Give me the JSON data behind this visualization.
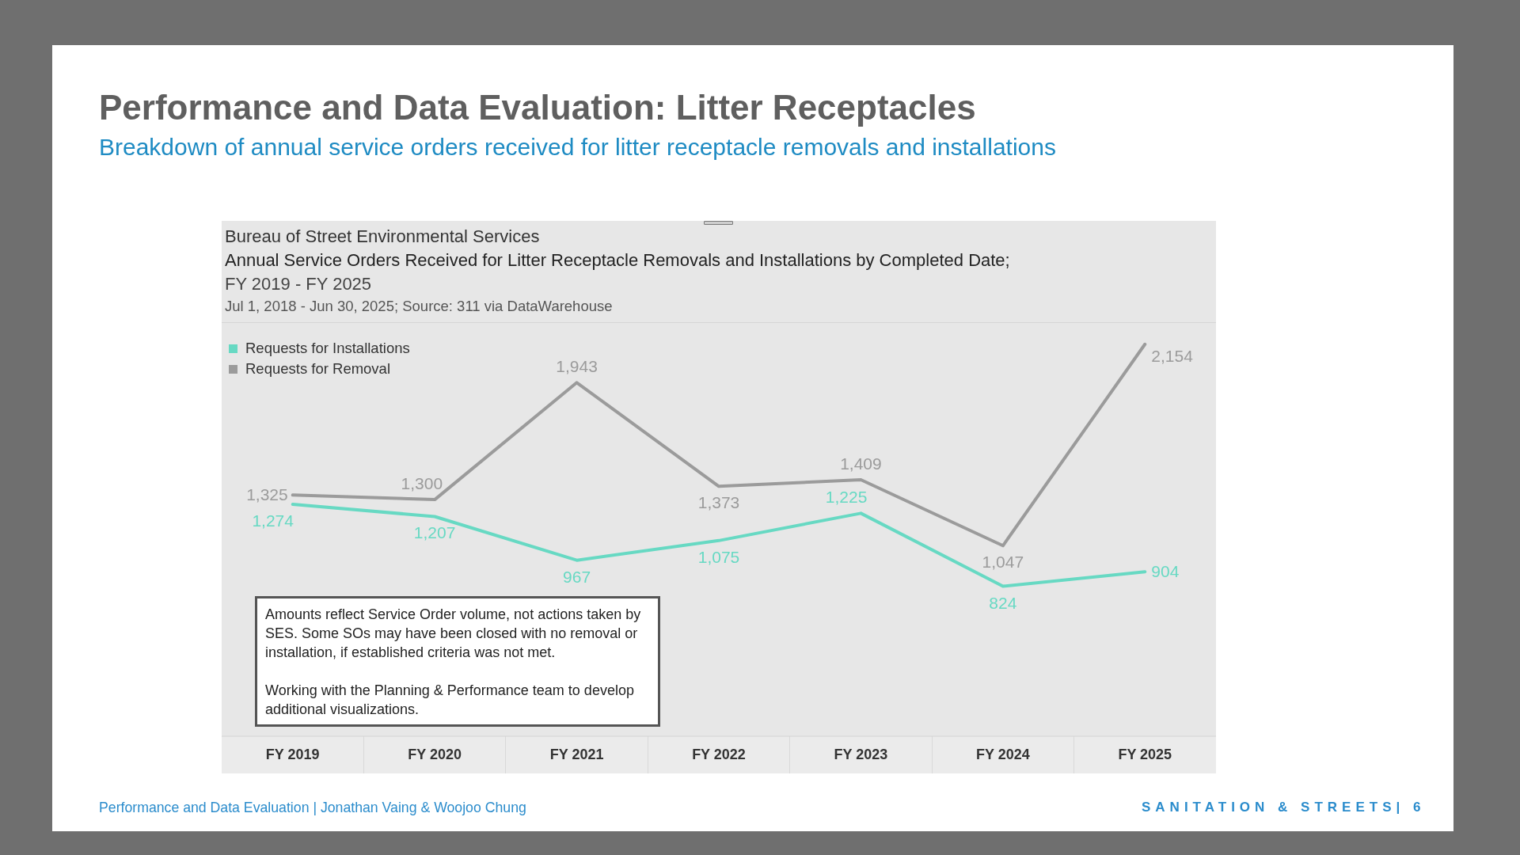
{
  "chart_data": {
    "type": "line",
    "title": "Performance and Data Evaluation: Litter Receptacles",
    "subtitle": "Breakdown of annual service orders received for litter receptacle removals and installations",
    "categories": [
      "FY 2019",
      "FY 2020",
      "FY 2021",
      "FY 2022",
      "FY 2023",
      "FY 2024",
      "FY 2025"
    ],
    "series": [
      {
        "name": "Requests for Installations",
        "color": "#67d9c3",
        "values": [
          1274,
          1207,
          967,
          1075,
          1225,
          824,
          904
        ],
        "value_labels": [
          "1,274",
          "1,207",
          "967",
          "1,075",
          "1,225",
          "824",
          "904"
        ]
      },
      {
        "name": "Requests for Removal",
        "color": "#9b9b9b",
        "values": [
          1325,
          1300,
          1943,
          1373,
          1409,
          1047,
          2154
        ],
        "value_labels": [
          "1,325",
          "1,300",
          "1,943",
          "1,373",
          "1,409",
          "1,047",
          "2,154"
        ]
      }
    ],
    "legend": "top left",
    "marker": "none",
    "line_style": "solid",
    "annotations": [
      "Bureau of Street Environmental Services",
      "Annual Service Orders Received for Litter Receptacle Removals and Installations by Completed Date;",
      "FY 2019 - FY 2025",
      "Jul 1, 2018 - Jun 30, 2025; Source: 311 via DataWarehouse",
      "Amounts reflect Service Order volume, not actions taken by SES. Some SOs may have been closed with no removal or installation, if established criteria was not met.",
      "Working with the Planning & Performance team to develop additional visualizations.",
      "Performance and Data Evaluation | Jonathan Vaing & Woojoo Chung",
      "SANITATION & STREETS| 6"
    ]
  }
}
